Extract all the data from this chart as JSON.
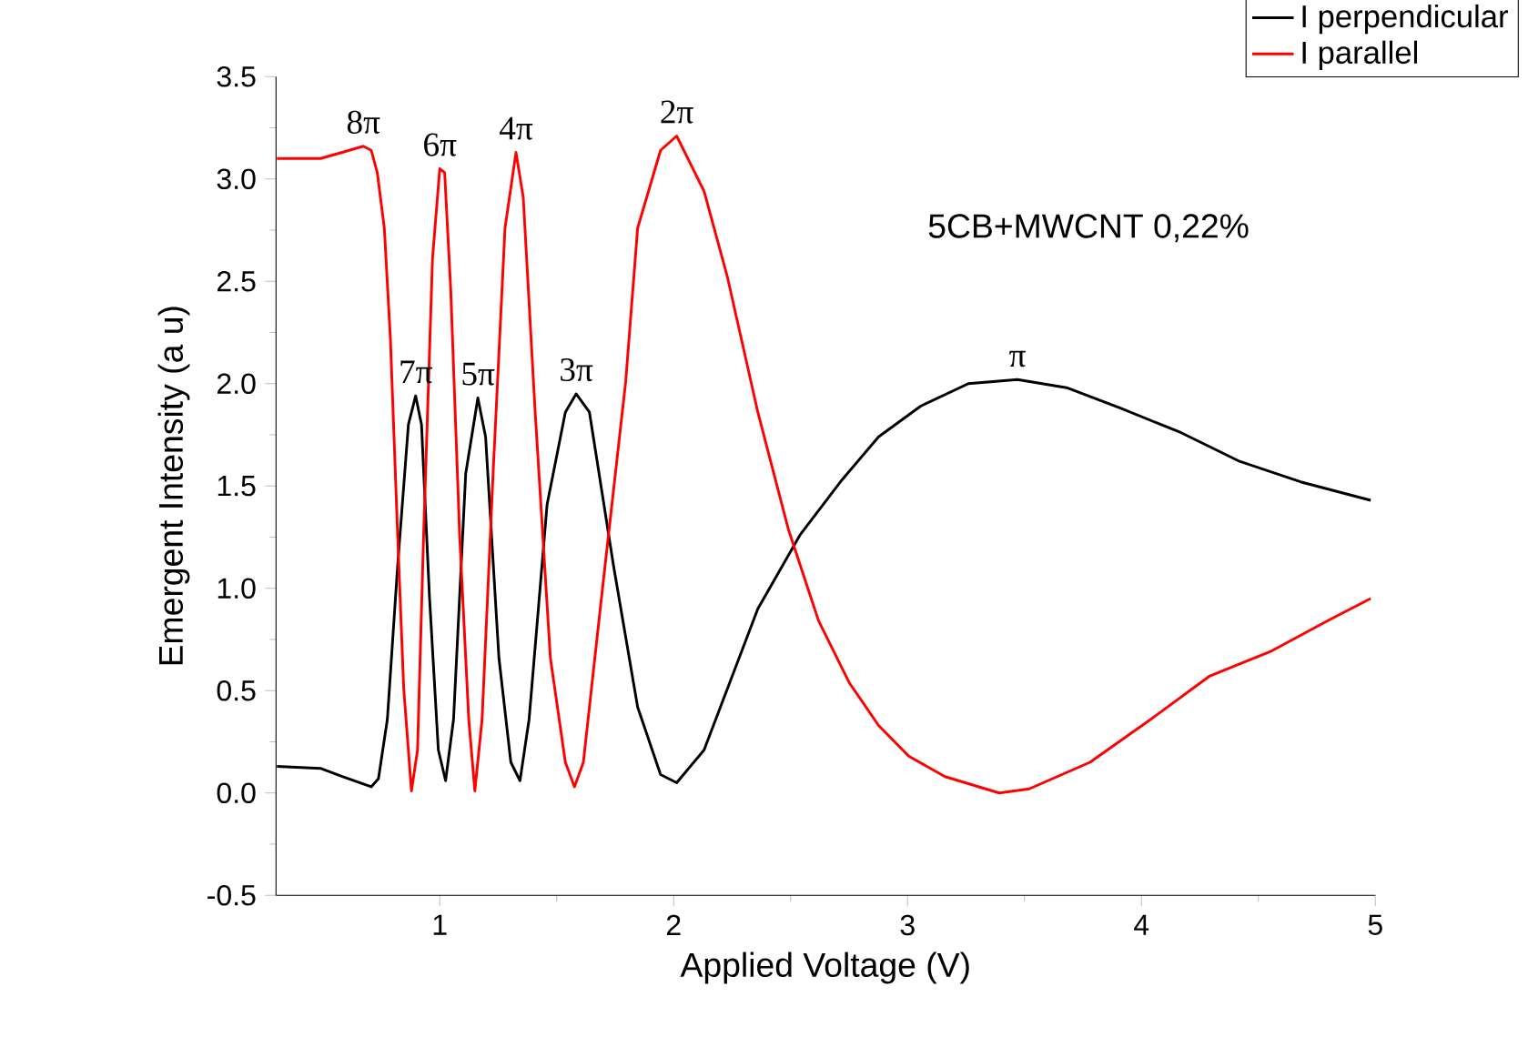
{
  "chart_data": {
    "type": "line",
    "xlabel": "Applied Voltage (V)",
    "ylabel": "Emergent Intensity (a u)",
    "xlim": [
      0.3,
      5
    ],
    "ylim": [
      -0.5,
      3.5
    ],
    "xticks": [
      1,
      2,
      3,
      4,
      5
    ],
    "yticks": [
      -0.5,
      {
        "value": 0,
        "label": "0.0"
      },
      0.5,
      {
        "value": 1,
        "label": "1.0"
      },
      1.5,
      {
        "value": 2,
        "label": "2.0"
      },
      2.5,
      {
        "value": 3,
        "label": "3.0"
      },
      3.5
    ],
    "legend": "top right",
    "grid": false,
    "marker": "none",
    "line_style": "solid",
    "annotations": [
      "5CB+MWCNT 0,22%",
      {
        "text": "8π",
        "x": 0.673,
        "y": 3.16
      },
      {
        "text": "6π",
        "x": 1.0,
        "y": 3.05
      },
      {
        "text": "4π",
        "x": 1.326,
        "y": 3.13
      },
      {
        "text": "7π",
        "x": 0.897,
        "y": 1.94
      },
      {
        "text": "5π",
        "x": 1.163,
        "y": 1.93
      },
      {
        "text": "3π",
        "x": 1.583,
        "y": 1.95
      },
      {
        "text": "2π",
        "x": 2.013,
        "y": 3.21
      },
      {
        "text": "π",
        "x": 3.47,
        "y": 2.02
      }
    ],
    "series": [
      {
        "name": "I perpendicular",
        "color": "#000000",
        "x": [
          0.304,
          0.49,
          0.583,
          0.707,
          0.738,
          0.776,
          0.82,
          0.866,
          0.897,
          0.922,
          0.956,
          0.994,
          1.025,
          1.059,
          1.111,
          1.163,
          1.196,
          1.253,
          1.304,
          1.343,
          1.382,
          1.459,
          1.537,
          1.583,
          1.64,
          1.743,
          1.846,
          1.944,
          2.013,
          2.13,
          2.23,
          2.36,
          2.54,
          2.72,
          2.876,
          3.056,
          3.26,
          3.47,
          3.68,
          3.91,
          4.17,
          4.42,
          4.68,
          4.98
        ],
        "values": [
          0.13,
          0.12,
          0.08,
          0.03,
          0.07,
          0.36,
          1.11,
          1.8,
          1.94,
          1.8,
          0.96,
          0.21,
          0.06,
          0.36,
          1.56,
          1.93,
          1.74,
          0.66,
          0.15,
          0.06,
          0.36,
          1.41,
          1.86,
          1.95,
          1.86,
          1.11,
          0.42,
          0.09,
          0.05,
          0.21,
          0.51,
          0.9,
          1.26,
          1.53,
          1.74,
          1.89,
          2.0,
          2.02,
          1.98,
          1.88,
          1.76,
          1.62,
          1.52,
          1.43
        ]
      },
      {
        "name": "I parallel",
        "color": "#ff0000",
        "x": [
          0.304,
          0.49,
          0.583,
          0.673,
          0.707,
          0.733,
          0.763,
          0.789,
          0.82,
          0.846,
          0.879,
          0.905,
          0.931,
          0.969,
          1.0,
          1.021,
          1.047,
          1.085,
          1.124,
          1.15,
          1.181,
          1.228,
          1.279,
          1.326,
          1.357,
          1.408,
          1.473,
          1.537,
          1.576,
          1.614,
          1.692,
          1.795,
          1.846,
          1.944,
          2.013,
          2.13,
          2.23,
          2.36,
          2.49,
          2.62,
          2.75,
          2.876,
          3.005,
          3.16,
          3.392,
          3.52,
          3.78,
          4.04,
          4.29,
          4.55,
          4.81,
          4.98
        ],
        "values": [
          3.1,
          3.1,
          3.13,
          3.16,
          3.14,
          3.03,
          2.76,
          2.22,
          1.26,
          0.51,
          0.01,
          0.21,
          1.26,
          2.61,
          3.05,
          3.03,
          2.46,
          1.26,
          0.36,
          0.01,
          0.36,
          1.56,
          2.76,
          3.13,
          2.91,
          1.86,
          0.66,
          0.15,
          0.03,
          0.15,
          0.96,
          2.01,
          2.76,
          3.14,
          3.21,
          2.94,
          2.52,
          1.86,
          1.29,
          0.84,
          0.54,
          0.33,
          0.18,
          0.08,
          0.0,
          0.02,
          0.15,
          0.36,
          0.57,
          0.69,
          0.85,
          0.95
        ]
      }
    ]
  }
}
